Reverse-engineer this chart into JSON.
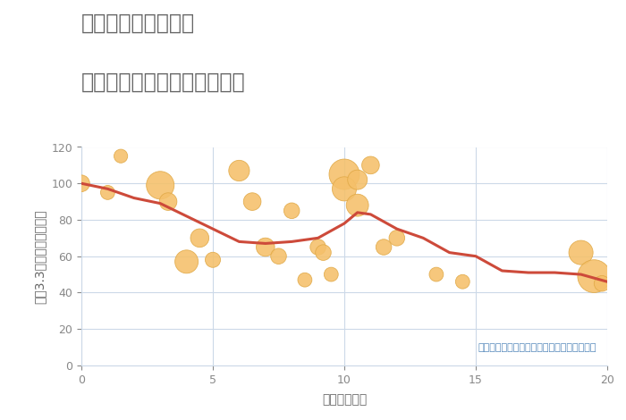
{
  "title_line1": "千葉県市原市飯給の",
  "title_line2": "駅距離別中古マンション価格",
  "xlabel": "駅距離（分）",
  "ylabel": "坪（3.3㎡）単価（万円）",
  "xlim": [
    0,
    20
  ],
  "ylim": [
    0,
    120
  ],
  "xticks": [
    0,
    5,
    10,
    15,
    20
  ],
  "yticks": [
    0,
    20,
    40,
    60,
    80,
    100,
    120
  ],
  "annotation": "円の大きさは、取引のあった物件面積を示す",
  "scatter_x": [
    0.0,
    1.0,
    1.5,
    3.0,
    3.3,
    4.0,
    4.5,
    5.0,
    6.0,
    6.5,
    7.0,
    7.5,
    8.0,
    8.5,
    9.0,
    9.2,
    9.5,
    10.0,
    10.0,
    10.5,
    10.5,
    11.0,
    11.5,
    12.0,
    13.5,
    14.5,
    19.0,
    19.5,
    19.8
  ],
  "scatter_y": [
    100,
    95,
    115,
    99,
    90,
    57,
    70,
    58,
    107,
    90,
    65,
    60,
    85,
    47,
    65,
    62,
    50,
    105,
    97,
    102,
    88,
    110,
    65,
    70,
    50,
    46,
    62,
    49,
    45
  ],
  "scatter_size": [
    180,
    130,
    120,
    500,
    200,
    350,
    220,
    150,
    280,
    200,
    220,
    160,
    160,
    130,
    160,
    160,
    130,
    600,
    380,
    250,
    320,
    200,
    160,
    160,
    130,
    130,
    380,
    700,
    160
  ],
  "line_x": [
    0,
    1,
    2,
    3,
    4,
    5,
    6,
    7,
    8,
    9,
    10,
    10.5,
    11,
    12,
    13,
    14,
    15,
    16,
    17,
    18,
    19,
    20
  ],
  "line_y": [
    100,
    97,
    92,
    89,
    82,
    75,
    68,
    67,
    68,
    70,
    78,
    84,
    83,
    75,
    70,
    62,
    60,
    52,
    51,
    51,
    50,
    46
  ],
  "line_color": "#cd4a3a",
  "scatter_color": "#f5c06a",
  "scatter_edge_color": "#e0a845",
  "background_color": "#ffffff",
  "grid_color": "#ccd9e8",
  "title_color": "#666666",
  "axis_label_color": "#666666",
  "tick_color": "#888888",
  "annotation_color": "#5588bb",
  "title_fontsize": 17,
  "axis_label_fontsize": 10,
  "tick_fontsize": 9,
  "annotation_fontsize": 8
}
